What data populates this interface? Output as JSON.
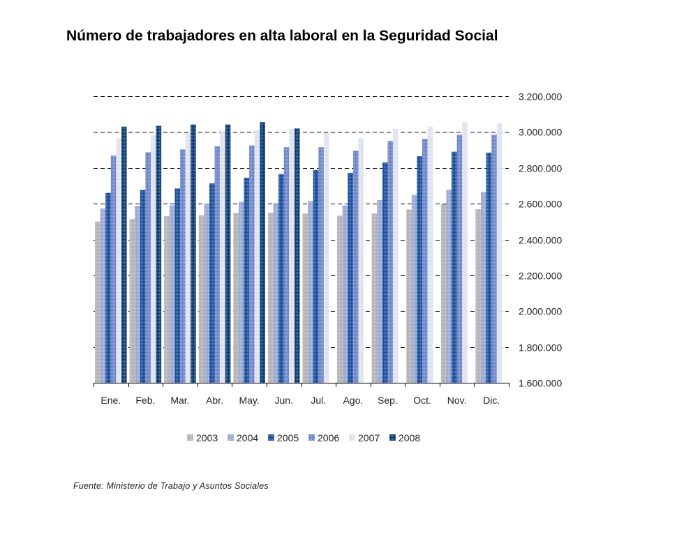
{
  "chart_data": {
    "type": "bar",
    "title": "Número de trabajadores en alta laboral en la Seguridad Social",
    "categories": [
      "Ene.",
      "Feb.",
      "Mar.",
      "Abr.",
      "May.",
      "Jun.",
      "Jul.",
      "Ago.",
      "Sep.",
      "Oct.",
      "Nov.",
      "Dic."
    ],
    "ylim": [
      1600000,
      3200000
    ],
    "yticks": [
      "1.600.000",
      "1.800.000",
      "2.000.000",
      "2.200.000",
      "2.400.000",
      "2.600.000",
      "2.800.000",
      "3.000.000",
      "3.200.000"
    ],
    "ytick_values": [
      1600000,
      1800000,
      2000000,
      2200000,
      2400000,
      2600000,
      2800000,
      3000000,
      3200000
    ],
    "grid": true,
    "legend_position": "bottom",
    "series": [
      {
        "name": "2003",
        "color": "#b3b3b3",
        "values": [
          2500000,
          2515000,
          2530000,
          2535000,
          2548000,
          2550000,
          2545000,
          2533000,
          2545000,
          2568000,
          2597000,
          2570000
        ]
      },
      {
        "name": "2004",
        "color": "#9aa8d4",
        "values": [
          2573000,
          2587000,
          2591000,
          2600000,
          2610000,
          2603000,
          2615000,
          2590000,
          2620000,
          2650000,
          2678000,
          2665000
        ]
      },
      {
        "name": "2005",
        "color": "#1a4f9c",
        "values": [
          2660000,
          2677000,
          2685000,
          2713000,
          2745000,
          2765000,
          2788000,
          2772000,
          2830000,
          2865000,
          2890000,
          2885000
        ]
      },
      {
        "name": "2006",
        "color": "#6f86c9",
        "values": [
          2868000,
          2887000,
          2903000,
          2921000,
          2925000,
          2915000,
          2915000,
          2896000,
          2950000,
          2962000,
          2985000,
          2985000
        ]
      },
      {
        "name": "2007",
        "color": "#dde3ee",
        "values": [
          2965000,
          2984000,
          2993000,
          3005000,
          3010000,
          3018000,
          2995000,
          2965000,
          3018000,
          3030000,
          3055000,
          3050000
        ]
      },
      {
        "name": "2008",
        "color": "#0f3c73",
        "values": [
          3030000,
          3035000,
          3042000,
          3042000,
          3055000,
          3020000,
          null,
          null,
          null,
          null,
          null,
          null
        ]
      }
    ]
  },
  "source": "Fuente: Ministerio de Trabajo y Asuntos Sociales"
}
